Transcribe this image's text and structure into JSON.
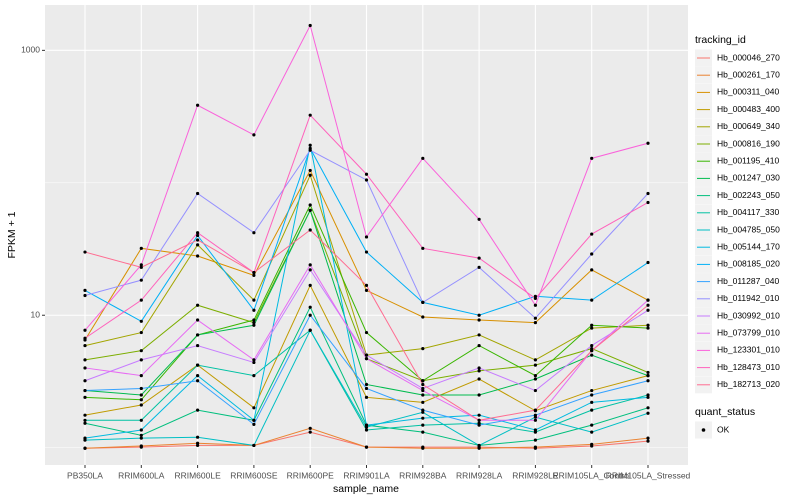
{
  "chart_data": {
    "type": "line",
    "log_y": true,
    "grid": true,
    "x_label": "sample_name",
    "y_label": "FPKM + 1",
    "categories": [
      "PB350LA",
      "RRIM600LA",
      "RRIM600LE",
      "RRIM600SE",
      "RRIM600PE",
      "RRIM901LA",
      "RRIM928BA",
      "RRIM928LA",
      "RRIM928LE",
      "RRIM105LA_Control",
      "RRIM105LA_Stressed"
    ],
    "ylim": [
      0.74,
      2200
    ],
    "yticks": [
      10,
      1000
    ],
    "y_minor_grid": [
      1,
      100
    ],
    "legend_title": "tracking_id",
    "point_legend": {
      "title": "quant_status",
      "labels": [
        "OK"
      ],
      "color": "#000000"
    },
    "series": [
      {
        "name": "Hb_000046_270",
        "color": "#F8766D",
        "values": [
          0.99,
          1.01,
          1.04,
          1.04,
          1.31,
          1.01,
          1.01,
          1.01,
          0.99,
          1.03,
          1.12
        ]
      },
      {
        "name": "Hb_000261_170",
        "color": "#EA8331",
        "values": [
          0.99,
          1.03,
          1.08,
          1.04,
          1.4,
          1.01,
          0.99,
          0.99,
          1.01,
          1.06,
          1.18
        ]
      },
      {
        "name": "Hb_000311_040",
        "color": "#D89000",
        "values": [
          6.5,
          32,
          28,
          20,
          124,
          15.4,
          9.7,
          9.2,
          8.8,
          22,
          13
        ]
      },
      {
        "name": "Hb_000483_400",
        "color": "#C09B00",
        "values": [
          1.76,
          2.1,
          4.2,
          2.0,
          16.8,
          2.4,
          2.2,
          3.3,
          1.9,
          2.7,
          3.5
        ]
      },
      {
        "name": "Hb_000649_340",
        "color": "#A3A500",
        "values": [
          5.9,
          7.4,
          34,
          13,
          114,
          5.0,
          5.6,
          7.1,
          4.6,
          8.0,
          8.4
        ]
      },
      {
        "name": "Hb_000816_190",
        "color": "#7CAE00",
        "values": [
          4.6,
          5.4,
          11.9,
          8.8,
          62,
          4.7,
          3.2,
          3.8,
          4.2,
          5.6,
          3.7
        ]
      },
      {
        "name": "Hb_001195_410",
        "color": "#39B600",
        "values": [
          2.4,
          2.3,
          7.1,
          9.2,
          68,
          7.4,
          3.2,
          5.9,
          3.5,
          8.4,
          8.0
        ]
      },
      {
        "name": "Hb_001247_030",
        "color": "#00BB4E",
        "values": [
          2.7,
          2.5,
          7.1,
          8.4,
          62,
          3.0,
          2.5,
          2.5,
          3.3,
          5.0,
          3.5
        ]
      },
      {
        "name": "Hb_002243_050",
        "color": "#00BF7D",
        "values": [
          1.53,
          1.24,
          1.92,
          1.61,
          11.5,
          1.48,
          1.31,
          1.04,
          1.14,
          1.48,
          2.0
        ]
      },
      {
        "name": "Hb_004117_330",
        "color": "#00C1A3",
        "values": [
          1.61,
          1.61,
          4.2,
          3.5,
          7.7,
          1.36,
          1.48,
          1.53,
          1.31,
          1.92,
          2.5
        ]
      },
      {
        "name": "Hb_004785_050",
        "color": "#00BFC4",
        "values": [
          1.14,
          1.18,
          1.2,
          1.04,
          7.7,
          1.43,
          1.85,
          1.04,
          1.7,
          1.31,
          1.82
        ]
      },
      {
        "name": "Hb_005144_170",
        "color": "#00BAE0",
        "values": [
          1.18,
          1.36,
          3.5,
          1.61,
          192,
          1.48,
          1.67,
          1.76,
          1.36,
          2.2,
          2.4
        ]
      },
      {
        "name": "Hb_008185_020",
        "color": "#00B0F6",
        "values": [
          15.4,
          9.0,
          40,
          10.9,
          182,
          30,
          12.5,
          10,
          13.9,
          13,
          25
        ]
      },
      {
        "name": "Hb_011287_040",
        "color": "#35A2FF",
        "values": [
          2.7,
          2.8,
          3.2,
          1.5,
          10,
          2.8,
          1.92,
          1.48,
          1.76,
          2.5,
          3.2
        ]
      },
      {
        "name": "Hb_011942_010",
        "color": "#9590FF",
        "values": [
          14.1,
          18.4,
          83,
          42,
          176,
          105,
          12.5,
          23,
          9.5,
          29,
          83
        ]
      },
      {
        "name": "Hb_030992_010",
        "color": "#C77CFF",
        "values": [
          3.2,
          4.6,
          5.9,
          4.4,
          22,
          5.0,
          2.8,
          4.0,
          2.7,
          5.9,
          10.9
        ]
      },
      {
        "name": "Hb_073799_010",
        "color": "#E76BF3",
        "values": [
          4.0,
          3.5,
          9.2,
          4.6,
          24,
          4.7,
          2.7,
          1.61,
          1.61,
          5.4,
          13
        ]
      },
      {
        "name": "Hb_123301_010",
        "color": "#FA62DB",
        "values": [
          7.7,
          24,
          385,
          230,
          1540,
          39,
          153,
          53,
          11.9,
          153,
          199
        ]
      },
      {
        "name": "Hb_128473_010",
        "color": "#FF62BC",
        "values": [
          6.7,
          13,
          42,
          21,
          324,
          116,
          32,
          27,
          13.4,
          41,
          71
        ]
      },
      {
        "name": "Hb_182713_020",
        "color": "#FF6C91",
        "values": [
          30,
          23,
          37,
          21,
          44,
          16.8,
          3.0,
          1.61,
          1.92,
          5.4,
          11.9
        ]
      }
    ]
  }
}
